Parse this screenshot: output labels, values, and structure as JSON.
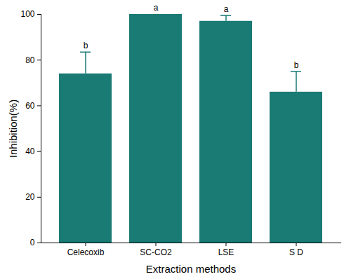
{
  "chart_data": {
    "type": "bar",
    "x_label": "Extraction methods",
    "y_label": "Inhibition(%)",
    "categories": [
      "Celecoxib",
      "SC-CO2",
      "LSE",
      "S D"
    ],
    "values": [
      74,
      100,
      97,
      66
    ],
    "errors": [
      9.5,
      0,
      2.5,
      9
    ],
    "significance_letters": [
      "b",
      "a",
      "a",
      "b"
    ],
    "color": "#1a7a74",
    "ylim": [
      0,
      100
    ],
    "yticks": [
      0,
      20,
      40,
      60,
      80,
      100
    ],
    "grid": false
  }
}
